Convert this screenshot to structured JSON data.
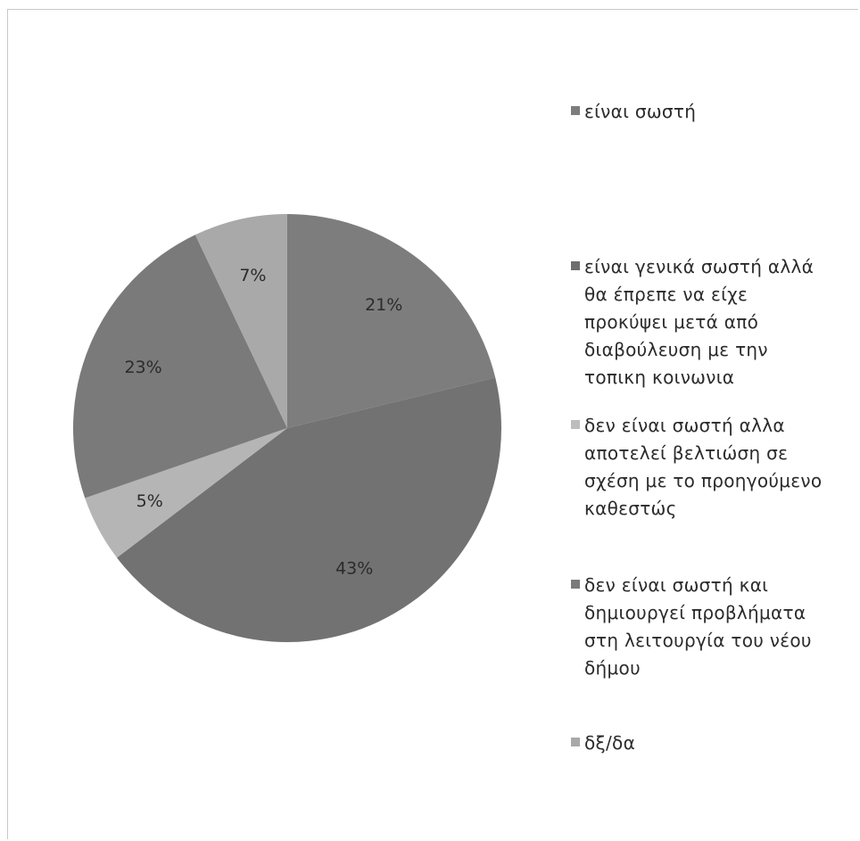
{
  "chart_data": {
    "type": "pie",
    "title": "",
    "slices": [
      {
        "label": "είναι σωστή",
        "value": 21,
        "display": "21%",
        "color": "#7d7d7d"
      },
      {
        "label": "είναι γενικά σωστή αλλά\nθα έπρεπε να είχε\nπροκύψει μετά από\nδιαβούλευση με την\nτοπικη κοινωνια",
        "value": 43,
        "display": "43%",
        "color": "#727272"
      },
      {
        "label": "δεν είναι σωστή αλλα\nαποτελεί βελτιώση σε\nσχέση με το προηγούμενο\nκαθεστώς",
        "value": 5,
        "display": "5%",
        "color": "#b5b5b5"
      },
      {
        "label": "δεν είναι σωστή και\nδημιουργεί προβλήματα\nστη λειτουργία του νέου\nδήμου",
        "value": 23,
        "display": "23%",
        "color": "#7a7a7a"
      },
      {
        "label": "δξ/δα",
        "value": 7,
        "display": "7%",
        "color": "#a9a9a9"
      }
    ],
    "legend_order": [
      0,
      1,
      2,
      3,
      4
    ],
    "legend_labels": [
      "είναι σωστή",
      "είναι γενικά σωστή αλλά\nθα έπρεπε να είχε\nπροκύψει μετά από\nδιαβούλευση με την\nτοπικη κοινωνια",
      "δεν είναι σωστή αλλα\nαποτελεί βελτιώση σε\nσχέση με το προηγούμενο\nκαθεστώς",
      "δεν είναι σωστή και\nδημιουργεί προβλήματα\nστη λειτουργία του νέου\nδήμου",
      "δξ/δα"
    ],
    "legend_colors": [
      "#7d7d7d",
      "#6e6e6e",
      "#bdbdbd",
      "#7a7a7a",
      "#a9a9a9"
    ],
    "legend_position": "right",
    "start_angle": "12 o'clock",
    "direction": "clockwise"
  }
}
